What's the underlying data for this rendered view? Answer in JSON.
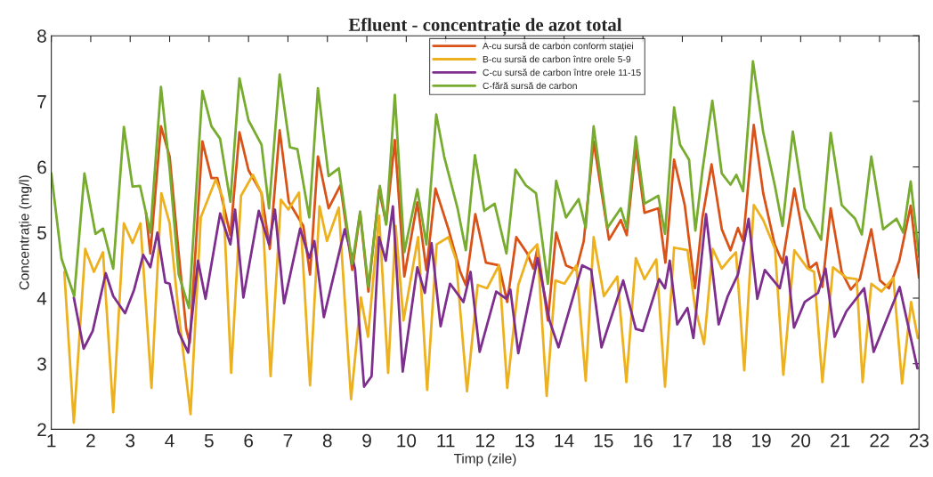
{
  "chart_data": {
    "type": "line",
    "title": "Efluent - concentrație de azot total",
    "xlabel": "Timp (zile)",
    "ylabel": "Concentrație (mg/l)",
    "xlim": [
      1,
      23
    ],
    "xticks": [
      1,
      2,
      3,
      4,
      5,
      6,
      7,
      8,
      9,
      10,
      11,
      12,
      13,
      14,
      15,
      16,
      17,
      18,
      19,
      20,
      21,
      22,
      23
    ],
    "ylim": [
      2,
      8
    ],
    "yticks": [
      2,
      3,
      4,
      5,
      6,
      7,
      8
    ],
    "grid": false,
    "legend": "top",
    "marker": "none",
    "line_style": "solid",
    "series": [
      {
        "name": "A-cu sursă de carbon conform stației",
        "color": "#d95319",
        "x": [
          3.4,
          3.51,
          3.78,
          4.0,
          4.23,
          4.42,
          4.51,
          4.83,
          5.06,
          5.21,
          5.54,
          5.77,
          6.0,
          6.33,
          6.54,
          6.79,
          7.02,
          7.39,
          7.56,
          7.76,
          8.03,
          8.33,
          8.63,
          8.83,
          9.04,
          9.31,
          9.49,
          9.71,
          9.95,
          10.28,
          10.51,
          10.74,
          11.07,
          11.37,
          11.51,
          11.75,
          12.02,
          12.35,
          12.56,
          12.79,
          13.07,
          13.22,
          13.33,
          13.59,
          13.8,
          14.05,
          14.31,
          14.5,
          14.75,
          15.14,
          15.44,
          15.59,
          15.82,
          16.04,
          16.39,
          16.57,
          16.79,
          17.06,
          17.32,
          17.51,
          17.74,
          18.0,
          18.22,
          18.41,
          18.54,
          18.81,
          19.05,
          19.34,
          19.54,
          19.84,
          20.22,
          20.4,
          20.55,
          20.76,
          21.04,
          21.27,
          21.5,
          21.79,
          22.01,
          22.24,
          22.5,
          22.79,
          23.0
        ],
        "values": [
          5.3,
          4.68,
          6.62,
          6.16,
          4.68,
          3.53,
          3.32,
          6.39,
          5.83,
          5.83,
          4.96,
          6.53,
          5.95,
          5.6,
          4.75,
          6.56,
          5.47,
          5.1,
          4.36,
          6.16,
          5.37,
          5.72,
          4.43,
          5.3,
          4.1,
          5.65,
          5.14,
          6.41,
          4.33,
          5.46,
          4.43,
          5.67,
          5.05,
          4.4,
          4.2,
          5.28,
          4.54,
          4.5,
          3.94,
          4.93,
          4.68,
          4.45,
          4.77,
          3.66,
          5.0,
          4.5,
          4.43,
          4.87,
          6.39,
          4.89,
          5.19,
          4.96,
          6.3,
          5.3,
          5.37,
          4.54,
          6.11,
          5.42,
          4.15,
          5.23,
          6.04,
          5.05,
          4.73,
          5.07,
          4.87,
          6.64,
          5.6,
          4.82,
          4.54,
          5.67,
          4.45,
          4.54,
          4.17,
          5.37,
          4.4,
          4.13,
          4.29,
          5.05,
          4.27,
          4.15,
          4.57,
          5.41,
          4.31
        ]
      },
      {
        "name": "B-cu sursă de carbon între orele 5-9",
        "color": "#edb120",
        "x": [
          1.33,
          1.57,
          1.86,
          2.08,
          2.31,
          2.57,
          2.84,
          3.06,
          3.26,
          3.54,
          3.79,
          4.0,
          4.23,
          4.53,
          4.79,
          5.17,
          5.36,
          5.56,
          5.81,
          6.11,
          6.33,
          6.56,
          6.82,
          7.01,
          7.28,
          7.56,
          7.8,
          7.99,
          8.29,
          8.6,
          8.85,
          9.03,
          9.31,
          9.54,
          9.73,
          9.93,
          10.3,
          10.53,
          10.77,
          11.07,
          11.26,
          11.54,
          11.81,
          12.05,
          12.35,
          12.56,
          12.84,
          13.11,
          13.32,
          13.56,
          13.78,
          14.01,
          14.31,
          14.55,
          14.75,
          15.01,
          15.35,
          15.58,
          15.82,
          16.04,
          16.34,
          16.56,
          16.79,
          17.13,
          17.32,
          17.55,
          17.77,
          18.0,
          18.19,
          18.36,
          18.57,
          18.81,
          19.05,
          19.35,
          19.56,
          19.84,
          20.18,
          20.34,
          20.55,
          20.82,
          21.16,
          21.42,
          21.57,
          21.79,
          22.05,
          22.35,
          22.57,
          22.8,
          22.97
        ],
        "values": [
          4.4,
          2.1,
          4.75,
          4.4,
          4.7,
          2.26,
          5.14,
          4.84,
          5.14,
          2.63,
          5.6,
          5.14,
          3.76,
          2.23,
          5.23,
          5.81,
          5.51,
          2.86,
          5.56,
          5.88,
          5.6,
          2.81,
          5.5,
          5.35,
          5.61,
          2.67,
          5.4,
          4.87,
          5.38,
          2.46,
          4.01,
          3.41,
          5.26,
          2.86,
          5.1,
          3.66,
          4.93,
          2.6,
          4.82,
          4.93,
          4.59,
          2.58,
          4.2,
          4.15,
          4.5,
          2.63,
          4.2,
          4.68,
          4.82,
          2.51,
          4.27,
          4.22,
          4.5,
          2.74,
          4.93,
          4.03,
          4.33,
          2.72,
          4.61,
          4.29,
          4.59,
          2.65,
          4.77,
          4.73,
          3.87,
          3.3,
          4.75,
          4.45,
          4.59,
          4.7,
          2.9,
          5.42,
          5.19,
          4.75,
          2.83,
          4.73,
          4.45,
          4.4,
          2.72,
          4.47,
          4.31,
          4.29,
          2.72,
          4.22,
          4.1,
          4.31,
          2.7,
          3.94,
          3.39
        ]
      },
      {
        "name": "C-cu sursă de carbon între orele 11-15",
        "color": "#7e2f8e",
        "x": [
          1.57,
          1.82,
          2.05,
          2.38,
          2.57,
          2.87,
          3.1,
          3.33,
          3.51,
          3.69,
          3.89,
          4.0,
          4.23,
          4.47,
          4.72,
          4.91,
          5.28,
          5.54,
          5.66,
          5.87,
          6.26,
          6.52,
          6.67,
          6.9,
          7.31,
          7.54,
          7.67,
          7.91,
          8.44,
          8.7,
          8.93,
          9.12,
          9.31,
          9.48,
          9.66,
          9.91,
          10.28,
          10.47,
          10.64,
          10.87,
          11.11,
          11.45,
          11.63,
          11.86,
          12.28,
          12.53,
          12.64,
          12.84,
          13.33,
          13.63,
          13.86,
          14.46,
          14.69,
          14.95,
          15.5,
          15.82,
          16.0,
          16.41,
          16.56,
          16.68,
          16.87,
          17.13,
          17.28,
          17.6,
          17.92,
          18.15,
          18.41,
          18.68,
          18.9,
          19.09,
          19.47,
          19.64,
          19.83,
          20.1,
          20.44,
          20.63,
          20.86,
          21.16,
          21.61,
          21.85,
          22.51,
          22.96
        ],
        "values": [
          4.01,
          3.23,
          3.5,
          4.38,
          4.03,
          3.77,
          4.13,
          4.66,
          4.47,
          5.0,
          4.24,
          4.22,
          3.48,
          3.17,
          4.57,
          3.99,
          5.29,
          4.82,
          5.35,
          4.01,
          5.33,
          4.82,
          5.35,
          3.92,
          5.06,
          4.61,
          4.87,
          3.71,
          5.05,
          4.45,
          2.65,
          2.81,
          4.93,
          4.57,
          5.4,
          2.88,
          4.47,
          4.08,
          4.84,
          3.57,
          4.22,
          3.94,
          4.4,
          3.18,
          4.1,
          3.99,
          4.13,
          3.16,
          4.61,
          3.66,
          3.25,
          4.5,
          4.43,
          3.25,
          4.27,
          3.53,
          3.5,
          4.29,
          4.15,
          4.57,
          3.6,
          3.85,
          3.39,
          5.28,
          3.6,
          4.03,
          4.36,
          5.21,
          3.99,
          4.43,
          4.15,
          4.63,
          3.55,
          3.94,
          4.08,
          4.45,
          3.41,
          3.8,
          4.15,
          3.18,
          4.17,
          2.93
        ]
      },
      {
        "name": "C-fără sursă de carbon",
        "color": "#77ac30",
        "x": [
          1.0,
          1.04,
          1.26,
          1.58,
          1.84,
          2.12,
          2.31,
          2.57,
          2.84,
          3.06,
          3.25,
          3.51,
          3.78,
          4.0,
          4.23,
          4.49,
          4.83,
          5.06,
          5.28,
          5.54,
          5.77,
          6.0,
          6.33,
          6.52,
          6.79,
          7.05,
          7.24,
          7.54,
          7.76,
          8.03,
          8.29,
          8.63,
          8.83,
          9.04,
          9.33,
          9.49,
          9.71,
          9.95,
          10.28,
          10.51,
          10.76,
          10.96,
          11.3,
          11.51,
          11.74,
          11.98,
          12.24,
          12.54,
          12.77,
          13.03,
          13.29,
          13.59,
          13.8,
          14.05,
          14.37,
          14.55,
          14.75,
          15.1,
          15.44,
          15.59,
          15.82,
          16.04,
          16.39,
          16.56,
          16.79,
          16.94,
          17.17,
          17.33,
          17.51,
          17.76,
          18.0,
          18.22,
          18.37,
          18.54,
          18.79,
          19.05,
          19.35,
          19.54,
          19.8,
          20.1,
          20.52,
          20.76,
          21.04,
          21.38,
          21.55,
          21.79,
          22.09,
          22.43,
          22.6,
          22.79,
          23.0
        ],
        "values": [
          5.9,
          5.7,
          4.6,
          4.03,
          5.9,
          4.98,
          5.06,
          4.45,
          6.61,
          5.7,
          5.71,
          5.0,
          7.22,
          5.97,
          4.36,
          3.85,
          7.16,
          6.62,
          6.43,
          5.47,
          7.35,
          6.71,
          6.34,
          5.37,
          7.41,
          6.3,
          6.27,
          5.23,
          7.2,
          5.86,
          5.98,
          4.52,
          5.32,
          4.17,
          5.71,
          5.12,
          7.1,
          4.7,
          5.66,
          4.82,
          6.8,
          6.16,
          5.37,
          4.73,
          6.18,
          5.33,
          5.44,
          4.68,
          5.96,
          5.72,
          5.6,
          4.22,
          5.79,
          5.23,
          5.51,
          5.07,
          6.62,
          5.07,
          5.37,
          5.07,
          6.46,
          5.44,
          5.56,
          4.98,
          6.91,
          6.34,
          6.11,
          5.03,
          5.95,
          7.01,
          5.9,
          5.73,
          5.88,
          5.63,
          7.61,
          6.53,
          5.7,
          5.1,
          6.54,
          5.37,
          4.89,
          6.52,
          5.42,
          5.21,
          4.97,
          6.16,
          5.05,
          5.21,
          5.0,
          5.78,
          4.63
        ]
      }
    ]
  }
}
